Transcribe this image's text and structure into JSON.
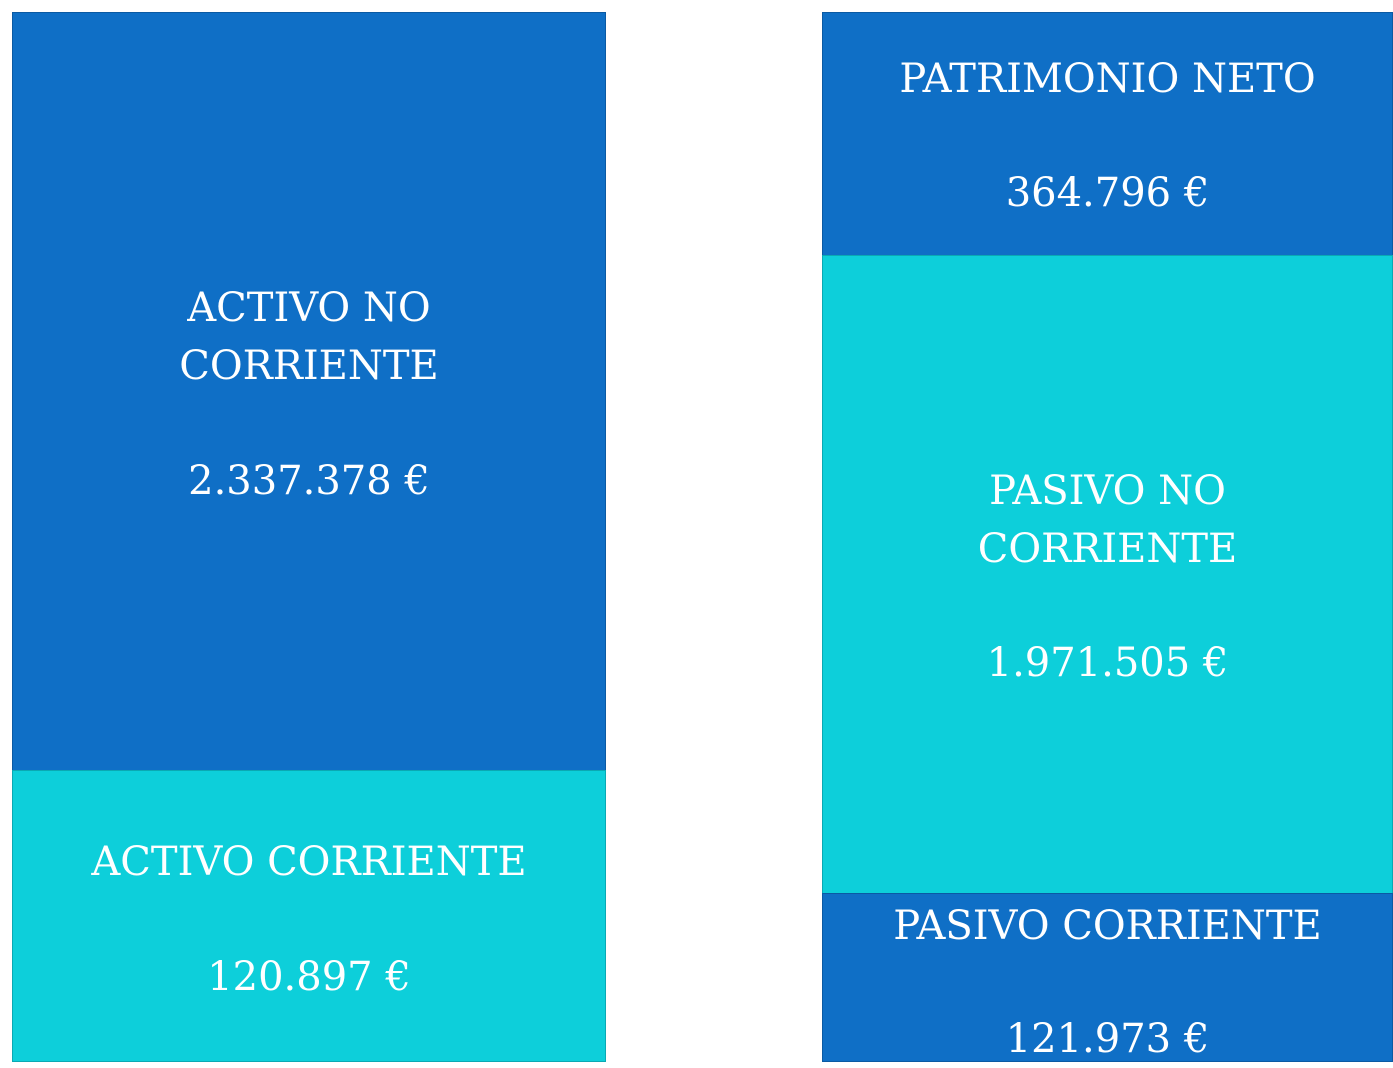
{
  "assets": [
    {
      "label": "ACTIVO NO CORRIENTE",
      "amount": "2.337.378 €"
    },
    {
      "label": "ACTIVO CORRIENTE",
      "amount": "120.897 €"
    }
  ],
  "liabilities": [
    {
      "label": "PATRIMONIO NETO",
      "amount": "364.796 €"
    },
    {
      "label": "PASIVO NO CORRIENTE",
      "amount": "1.971.505 €"
    },
    {
      "label": "PASIVO CORRIENTE",
      "amount": "121.973 €"
    }
  ]
}
